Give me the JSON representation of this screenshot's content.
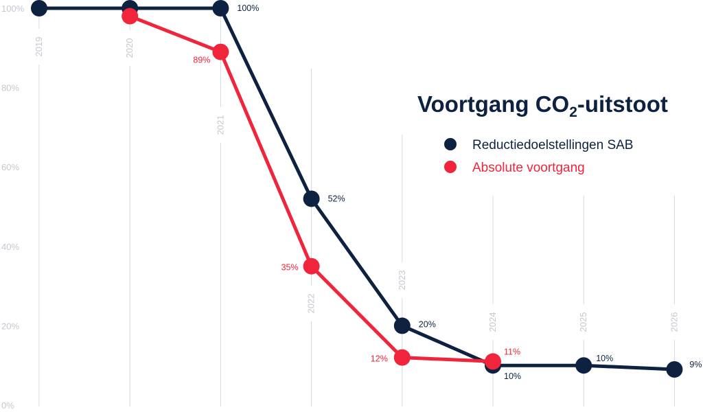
{
  "chart_data": {
    "type": "line",
    "title_main": "Voortgang CO",
    "title_sub": "2",
    "title_end": "-uitstoot",
    "categories": [
      "2019",
      "2020",
      "2021",
      "2022",
      "2023",
      "2024",
      "2025",
      "2026"
    ],
    "ylim": [
      0,
      100
    ],
    "yticks": [
      0,
      20,
      40,
      60,
      80,
      100
    ],
    "ytick_labels": [
      "0%",
      "20%",
      "40%",
      "60%",
      "80%",
      "100%"
    ],
    "legend_position": "top-right",
    "grid": "vertical",
    "series": [
      {
        "name": "Reductiedoelstellingen SAB",
        "color": "#0d2240",
        "values": [
          100,
          100,
          100,
          52,
          20,
          10,
          10,
          9
        ],
        "labels": [
          "",
          "",
          "100%",
          "52%",
          "20%",
          "10%",
          "10%",
          "9%"
        ]
      },
      {
        "name": "Absolute voortgang",
        "color": "#f0243a",
        "values": [
          null,
          98,
          89,
          35,
          12,
          11,
          null,
          null
        ],
        "labels": [
          "",
          "",
          "89%",
          "35%",
          "12%",
          "11%",
          "",
          ""
        ]
      }
    ]
  }
}
